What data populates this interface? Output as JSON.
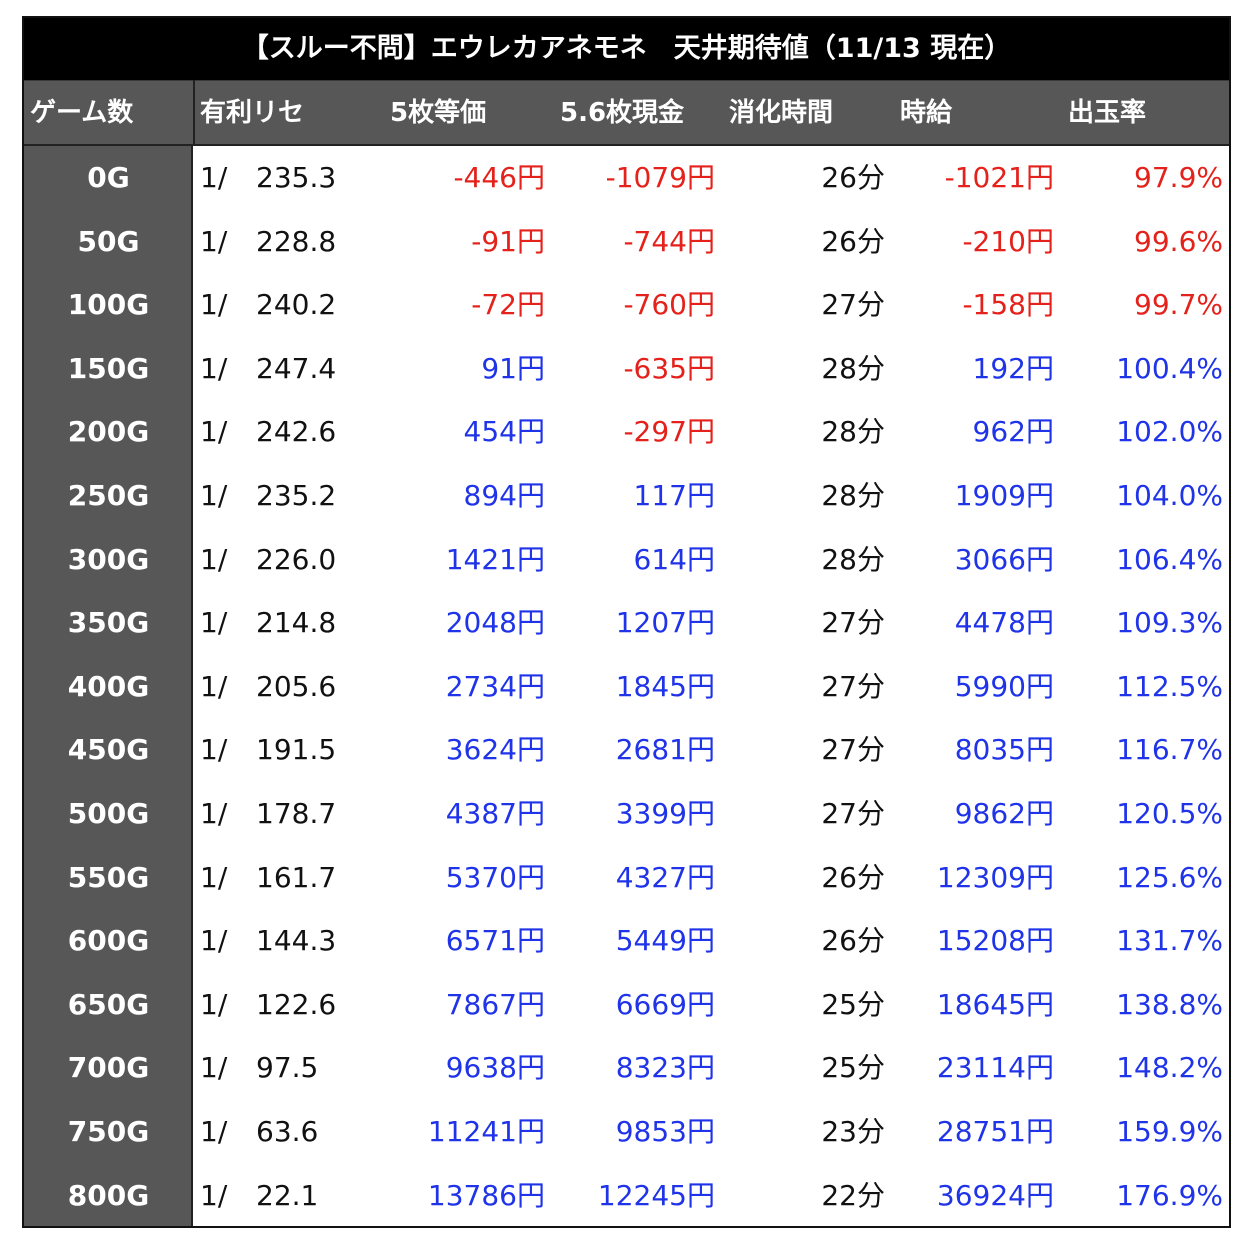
{
  "title": "【スルー不問】エウレカアネモネ　天井期待値（11/13 現在）",
  "headers": {
    "game": "ゲーム数",
    "prob": "有利リセ",
    "v5": "5枚等価",
    "v56": "5.6枚現金",
    "time": "消化時間",
    "hourly": "時給",
    "rate": "出玉率"
  },
  "colors": {
    "negative": "#e4211b",
    "positive": "#1f33e8",
    "header_bg": "#575757",
    "title_bg": "#000000"
  },
  "rows": [
    {
      "game": "0G",
      "prob_prefix": "1/",
      "prob": "235.3",
      "v5": "-446円",
      "v56": "-1079円",
      "time": "26分",
      "hourly": "-1021円",
      "rate": "97.9%"
    },
    {
      "game": "50G",
      "prob_prefix": "1/",
      "prob": "228.8",
      "v5": "-91円",
      "v56": "-744円",
      "time": "26分",
      "hourly": "-210円",
      "rate": "99.6%"
    },
    {
      "game": "100G",
      "prob_prefix": "1/",
      "prob": "240.2",
      "v5": "-72円",
      "v56": "-760円",
      "time": "27分",
      "hourly": "-158円",
      "rate": "99.7%"
    },
    {
      "game": "150G",
      "prob_prefix": "1/",
      "prob": "247.4",
      "v5": "91円",
      "v56": "-635円",
      "time": "28分",
      "hourly": "192円",
      "rate": "100.4%"
    },
    {
      "game": "200G",
      "prob_prefix": "1/",
      "prob": "242.6",
      "v5": "454円",
      "v56": "-297円",
      "time": "28分",
      "hourly": "962円",
      "rate": "102.0%"
    },
    {
      "game": "250G",
      "prob_prefix": "1/",
      "prob": "235.2",
      "v5": "894円",
      "v56": "117円",
      "time": "28分",
      "hourly": "1909円",
      "rate": "104.0%"
    },
    {
      "game": "300G",
      "prob_prefix": "1/",
      "prob": "226.0",
      "v5": "1421円",
      "v56": "614円",
      "time": "28分",
      "hourly": "3066円",
      "rate": "106.4%"
    },
    {
      "game": "350G",
      "prob_prefix": "1/",
      "prob": "214.8",
      "v5": "2048円",
      "v56": "1207円",
      "time": "27分",
      "hourly": "4478円",
      "rate": "109.3%"
    },
    {
      "game": "400G",
      "prob_prefix": "1/",
      "prob": "205.6",
      "v5": "2734円",
      "v56": "1845円",
      "time": "27分",
      "hourly": "5990円",
      "rate": "112.5%"
    },
    {
      "game": "450G",
      "prob_prefix": "1/",
      "prob": "191.5",
      "v5": "3624円",
      "v56": "2681円",
      "time": "27分",
      "hourly": "8035円",
      "rate": "116.7%"
    },
    {
      "game": "500G",
      "prob_prefix": "1/",
      "prob": "178.7",
      "v5": "4387円",
      "v56": "3399円",
      "time": "27分",
      "hourly": "9862円",
      "rate": "120.5%"
    },
    {
      "game": "550G",
      "prob_prefix": "1/",
      "prob": "161.7",
      "v5": "5370円",
      "v56": "4327円",
      "time": "26分",
      "hourly": "12309円",
      "rate": "125.6%"
    },
    {
      "game": "600G",
      "prob_prefix": "1/",
      "prob": "144.3",
      "v5": "6571円",
      "v56": "5449円",
      "time": "26分",
      "hourly": "15208円",
      "rate": "131.7%"
    },
    {
      "game": "650G",
      "prob_prefix": "1/",
      "prob": "122.6",
      "v5": "7867円",
      "v56": "6669円",
      "time": "25分",
      "hourly": "18645円",
      "rate": "138.8%"
    },
    {
      "game": "700G",
      "prob_prefix": "1/",
      "prob": "97.5",
      "v5": "9638円",
      "v56": "8323円",
      "time": "25分",
      "hourly": "23114円",
      "rate": "148.2%"
    },
    {
      "game": "750G",
      "prob_prefix": "1/",
      "prob": "63.6",
      "v5": "11241円",
      "v56": "9853円",
      "time": "23分",
      "hourly": "28751円",
      "rate": "159.9%"
    },
    {
      "game": "800G",
      "prob_prefix": "1/",
      "prob": "22.1",
      "v5": "13786円",
      "v56": "12245円",
      "time": "22分",
      "hourly": "36924円",
      "rate": "176.9%"
    }
  ]
}
